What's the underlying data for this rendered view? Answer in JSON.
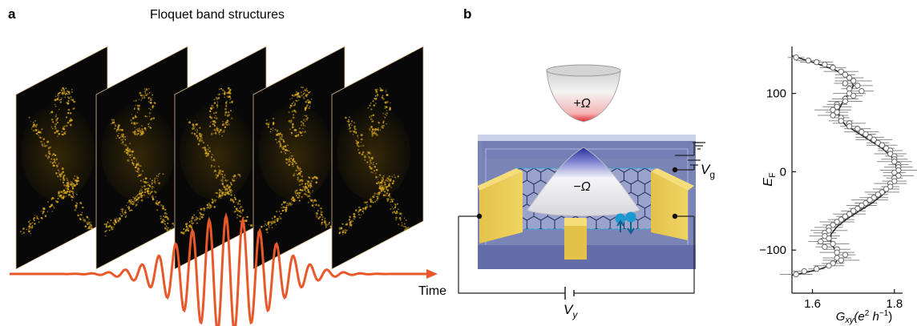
{
  "panel_a": {
    "letter": "a",
    "title": "Floquet band structures",
    "time_label": "Time",
    "colors": {
      "pulse": "#e8582a",
      "spectra": "#d8a81e"
    }
  },
  "panel_b": {
    "letter": "b",
    "top_cone_label": "+Ω",
    "bottom_cone_label": "−Ω",
    "gate_voltage": "V",
    "gate_sub": "g",
    "bias_voltage": "V",
    "bias_sub": "y",
    "colors": {
      "substrate": "#6f7ab1",
      "contacts": "#e8c84a",
      "lattice": "#2b3a6e",
      "spin": "#1b9ad0"
    }
  },
  "chart_data": {
    "type": "scatter",
    "xlabel_main": "G",
    "xlabel_sub": "xy",
    "xlabel_units_open": "(e",
    "xlabel_units_sup1": "2",
    "xlabel_units_mid": " h",
    "xlabel_units_sup2": "−1",
    "xlabel_units_close": ")",
    "ylabel_main": "E",
    "ylabel_sub": "F",
    "xlim": [
      1.55,
      1.82
    ],
    "ylim": [
      -155,
      160
    ],
    "xticks": [
      1.6,
      1.8
    ],
    "xtick_labels": [
      "1.6",
      "1.8"
    ],
    "yticks": [
      -100,
      0,
      100
    ],
    "ytick_labels": [
      "−100",
      "0",
      "100"
    ],
    "series": [
      {
        "points": [
          [
            1.56,
            146
          ],
          [
            1.59,
            142
          ],
          [
            1.61,
            140
          ],
          [
            1.63,
            137
          ],
          [
            1.65,
            133
          ],
          [
            1.67,
            128
          ],
          [
            1.68,
            124
          ],
          [
            1.69,
            120
          ],
          [
            1.7,
            116
          ],
          [
            1.68,
            113
          ],
          [
            1.71,
            110
          ],
          [
            1.69,
            106
          ],
          [
            1.72,
            103
          ],
          [
            1.69,
            100
          ],
          [
            1.7,
            97
          ],
          [
            1.68,
            93
          ],
          [
            1.68,
            90
          ],
          [
            1.66,
            86
          ],
          [
            1.66,
            83
          ],
          [
            1.65,
            79
          ],
          [
            1.66,
            76
          ],
          [
            1.65,
            72
          ],
          [
            1.67,
            69
          ],
          [
            1.67,
            65
          ],
          [
            1.69,
            62
          ],
          [
            1.69,
            58
          ],
          [
            1.71,
            55
          ],
          [
            1.72,
            51
          ],
          [
            1.73,
            48
          ],
          [
            1.74,
            44
          ],
          [
            1.75,
            41
          ],
          [
            1.76,
            37
          ],
          [
            1.77,
            34
          ],
          [
            1.78,
            30
          ],
          [
            1.79,
            27
          ],
          [
            1.79,
            23
          ],
          [
            1.8,
            20
          ],
          [
            1.8,
            16
          ],
          [
            1.8,
            13
          ],
          [
            1.81,
            9
          ],
          [
            1.81,
            6
          ],
          [
            1.81,
            2
          ],
          [
            1.8,
            -1
          ],
          [
            1.81,
            -5
          ],
          [
            1.8,
            -8
          ],
          [
            1.8,
            -12
          ],
          [
            1.79,
            -15
          ],
          [
            1.79,
            -19
          ],
          [
            1.78,
            -22
          ],
          [
            1.77,
            -26
          ],
          [
            1.76,
            -29
          ],
          [
            1.75,
            -33
          ],
          [
            1.74,
            -36
          ],
          [
            1.73,
            -40
          ],
          [
            1.72,
            -43
          ],
          [
            1.71,
            -47
          ],
          [
            1.7,
            -50
          ],
          [
            1.69,
            -54
          ],
          [
            1.68,
            -57
          ],
          [
            1.67,
            -61
          ],
          [
            1.66,
            -64
          ],
          [
            1.65,
            -68
          ],
          [
            1.64,
            -71
          ],
          [
            1.64,
            -75
          ],
          [
            1.63,
            -78
          ],
          [
            1.63,
            -82
          ],
          [
            1.64,
            -85
          ],
          [
            1.62,
            -89
          ],
          [
            1.65,
            -92
          ],
          [
            1.63,
            -96
          ],
          [
            1.66,
            -99
          ],
          [
            1.66,
            -103
          ],
          [
            1.68,
            -106
          ],
          [
            1.66,
            -110
          ],
          [
            1.67,
            -113
          ],
          [
            1.65,
            -117
          ],
          [
            1.64,
            -120
          ],
          [
            1.61,
            -124
          ],
          [
            1.58,
            -127
          ],
          [
            1.56,
            -131
          ]
        ]
      }
    ],
    "fit_curve": [
      [
        1.55,
        148
      ],
      [
        1.6,
        140
      ],
      [
        1.655,
        130
      ],
      [
        1.69,
        120
      ],
      [
        1.7,
        110
      ],
      [
        1.69,
        100
      ],
      [
        1.675,
        90
      ],
      [
        1.665,
        80
      ],
      [
        1.665,
        70
      ],
      [
        1.68,
        60
      ],
      [
        1.71,
        50
      ],
      [
        1.74,
        40
      ],
      [
        1.77,
        30
      ],
      [
        1.792,
        20
      ],
      [
        1.803,
        10
      ],
      [
        1.806,
        0
      ],
      [
        1.802,
        -10
      ],
      [
        1.79,
        -20
      ],
      [
        1.77,
        -30
      ],
      [
        1.745,
        -40
      ],
      [
        1.715,
        -50
      ],
      [
        1.685,
        -60
      ],
      [
        1.66,
        -70
      ],
      [
        1.645,
        -80
      ],
      [
        1.645,
        -90
      ],
      [
        1.655,
        -100
      ],
      [
        1.665,
        -110
      ],
      [
        1.655,
        -117
      ],
      [
        1.62,
        -124
      ],
      [
        1.58,
        -129
      ],
      [
        1.55,
        -132
      ]
    ]
  }
}
